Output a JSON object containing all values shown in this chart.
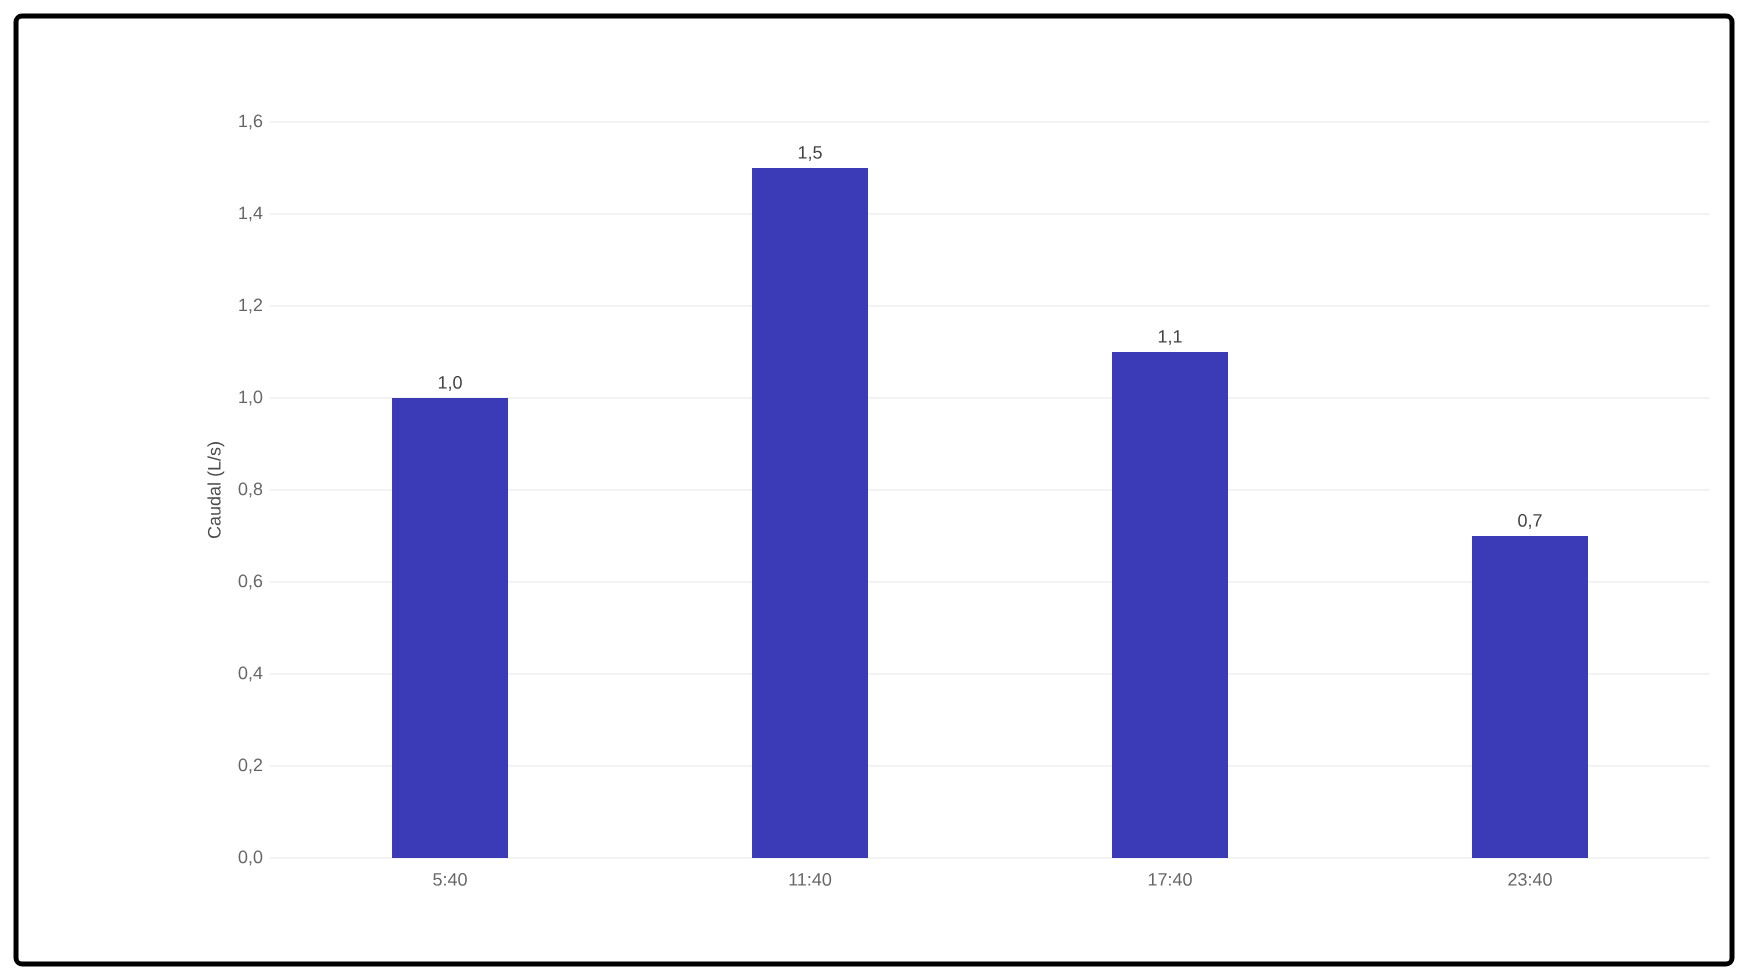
{
  "chart_data": {
    "type": "bar",
    "ylabel": "Caudal (L/s)",
    "categories": [
      "5:40",
      "11:40",
      "17:40",
      "23:40"
    ],
    "values": [
      1.0,
      1.5,
      1.1,
      0.7
    ],
    "value_labels": [
      "1,0",
      "1,5",
      "1,1",
      "0,7"
    ],
    "color": "#3b3bb8",
    "ylim": [
      0,
      1.6
    ],
    "yticks": [
      {
        "value": 0,
        "label": "0,0"
      },
      {
        "value": 0.2,
        "label": "0,2"
      },
      {
        "value": 0.4,
        "label": "0,4"
      },
      {
        "value": 0.6,
        "label": "0,6"
      },
      {
        "value": 0.8,
        "label": "0,8"
      },
      {
        "value": 1.0,
        "label": "1,0"
      },
      {
        "value": 1.2,
        "label": "1,2"
      },
      {
        "value": 1.4,
        "label": "1,4"
      },
      {
        "value": 1.6,
        "label": "1,6"
      }
    ],
    "grid": "y"
  }
}
